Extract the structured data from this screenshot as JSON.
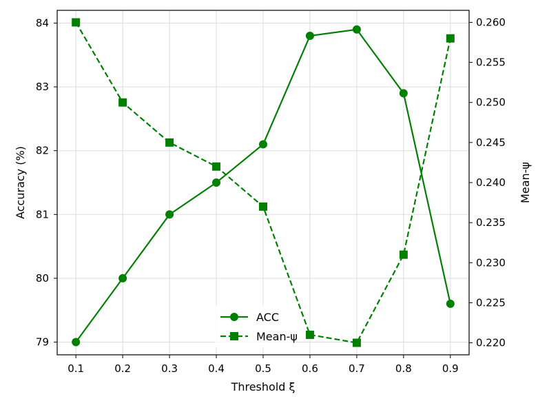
{
  "chart_data": {
    "type": "line",
    "x": [
      0.1,
      0.2,
      0.3,
      0.4,
      0.5,
      0.6,
      0.7,
      0.8,
      0.9
    ],
    "x_tick_labels": [
      "0.1",
      "0.2",
      "0.3",
      "0.4",
      "0.5",
      "0.6",
      "0.7",
      "0.8",
      "0.9"
    ],
    "xlabel": "Threshold ξ",
    "ylabel_left": "Accuracy (%)",
    "ylabel_right": "Mean-ψ",
    "ylim_left": [
      78.8,
      84.2
    ],
    "ylim_right": [
      0.2185,
      0.2615
    ],
    "xlim": [
      0.06,
      0.94
    ],
    "y_left_ticks": [
      79,
      80,
      81,
      82,
      83,
      84
    ],
    "y_left_tick_labels": [
      "79",
      "80",
      "81",
      "82",
      "83",
      "84"
    ],
    "y_right_ticks": [
      0.22,
      0.225,
      0.23,
      0.235,
      0.24,
      0.245,
      0.25,
      0.255,
      0.26
    ],
    "y_right_tick_labels": [
      "0.220",
      "0.225",
      "0.230",
      "0.235",
      "0.240",
      "0.245",
      "0.250",
      "0.255",
      "0.260"
    ],
    "grid": true,
    "legend_position": "lower-center",
    "color": "#008000",
    "series": [
      {
        "name": "ACC",
        "axis": "left",
        "line_style": "solid",
        "marker": "circle",
        "values": [
          79.0,
          80.0,
          81.0,
          81.5,
          82.1,
          83.8,
          83.9,
          82.9,
          79.6
        ]
      },
      {
        "name": "Mean-ψ",
        "axis": "right",
        "line_style": "dashed",
        "marker": "square",
        "values": [
          0.26,
          0.25,
          0.245,
          0.242,
          0.237,
          0.221,
          0.22,
          0.231,
          0.258
        ]
      }
    ]
  }
}
